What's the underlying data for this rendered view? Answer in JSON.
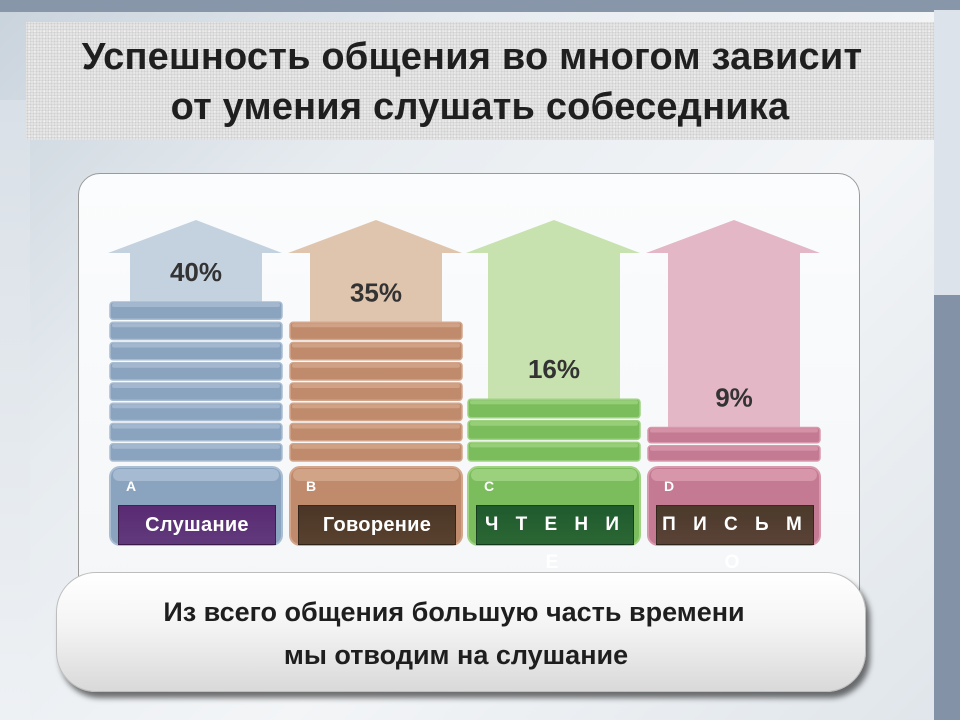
{
  "title": {
    "line1": "Успешность общения во многом зависит",
    "line2": "от умения слушать собеседника"
  },
  "chart_data": {
    "type": "bar",
    "title": "Успешность общения во многом зависит от умения слушать собеседника",
    "categories": [
      "Слушание",
      "Говорение",
      "Ч Т Е Н И Е",
      "П И С Ь М О"
    ],
    "letters": [
      "A",
      "B",
      "C",
      "D"
    ],
    "values": [
      40,
      35,
      16,
      9
    ],
    "value_labels": [
      "40%",
      "35%",
      "16%",
      "9%"
    ],
    "unit": "%",
    "colors": {
      "arrows": [
        "#c4d2e0",
        "#e0c5ae",
        "#c7e2ae",
        "#e3b7c6"
      ],
      "stack": [
        "#8aa3bf",
        "#c08a6c",
        "#7bbd5c",
        "#c47a92"
      ],
      "stack_light": [
        "#a9bdd3",
        "#d3a68b",
        "#9fd381",
        "#d999ad"
      ],
      "labels": [
        "#5a2a72",
        "#4a3626",
        "#1f5a2e",
        "#4b3a2a"
      ]
    }
  },
  "footer": {
    "line1": "Из всего общения большую часть времени",
    "line2": "мы отводим на слушание"
  }
}
